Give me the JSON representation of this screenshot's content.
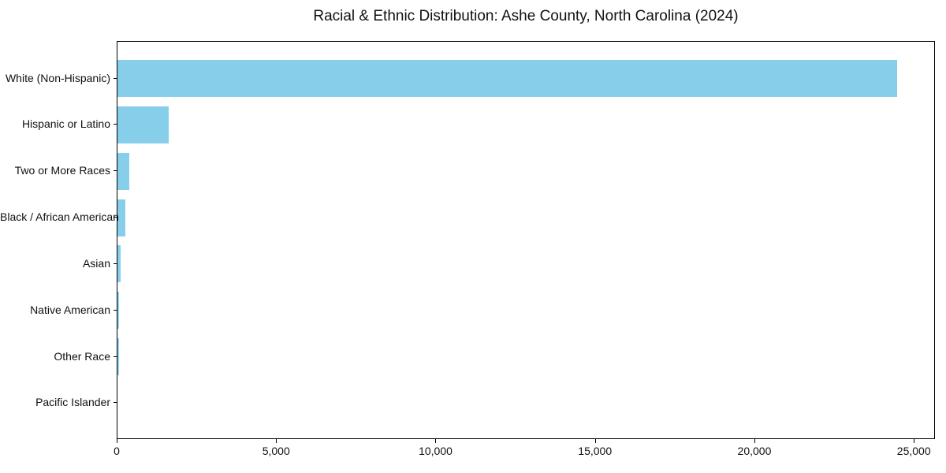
{
  "title": "Racial & Ethnic Distribution: Ashe County, North Carolina (2024)",
  "chart_data": {
    "type": "bar",
    "orientation": "horizontal",
    "title": "Racial & Ethnic Distribution: Ashe County, North Carolina (2024)",
    "categories": [
      "White (Non-Hispanic)",
      "Hispanic or Latino",
      "Two or More Races",
      "Black / African American",
      "Asian",
      "Native American",
      "Other Race",
      "Pacific Islander"
    ],
    "values": [
      24440,
      1610,
      370,
      240,
      110,
      60,
      55,
      10
    ],
    "xlabel": "",
    "ylabel": "",
    "xlim": [
      0,
      25662
    ],
    "xticks": [
      {
        "value": 0,
        "label": "0"
      },
      {
        "value": 5000,
        "label": "5,000"
      },
      {
        "value": 10000,
        "label": "10,000"
      },
      {
        "value": 15000,
        "label": "15,000"
      },
      {
        "value": 20000,
        "label": "20,000"
      },
      {
        "value": 25000,
        "label": "25,000"
      }
    ],
    "bar_color": "#87CEEB",
    "axis_color": "#000000",
    "background_color": "#FFFFFF",
    "grid": false,
    "legend": null
  }
}
